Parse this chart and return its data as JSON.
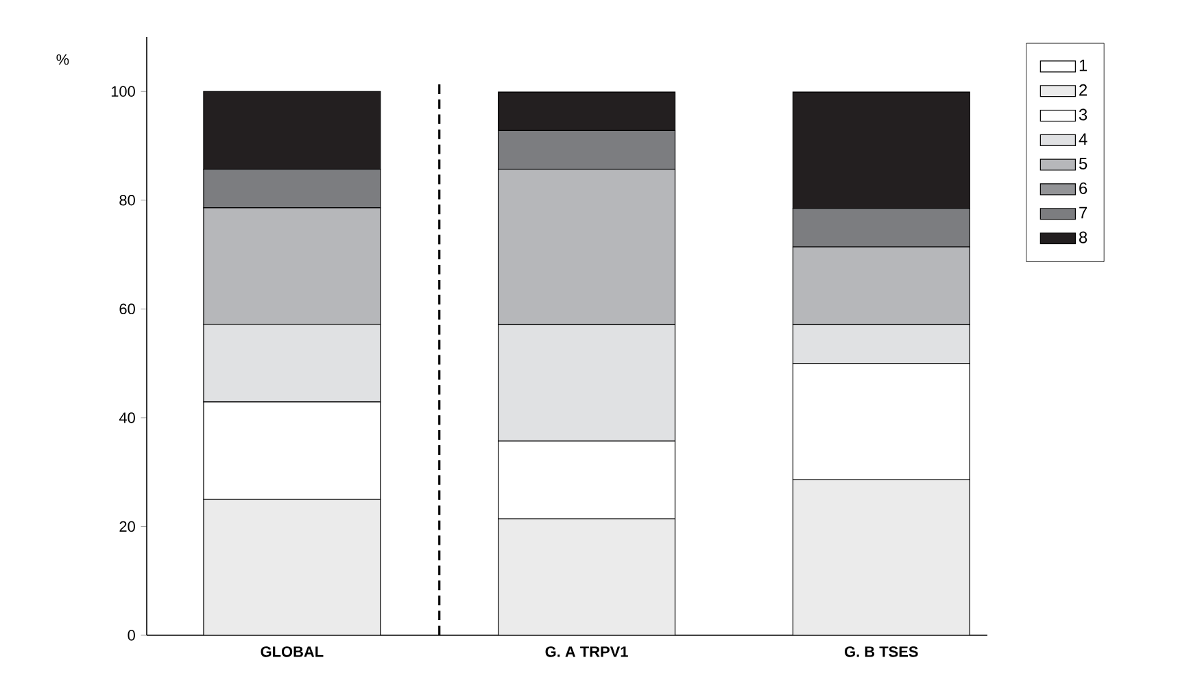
{
  "chart_data": {
    "type": "bar",
    "stacked": true,
    "ylabel": "%",
    "categories": [
      "GLOBAL",
      "G. A TRPV1",
      "G. B TSES"
    ],
    "series": [
      {
        "name": "1",
        "color": "#ffffff",
        "values": [
          0,
          0,
          0
        ]
      },
      {
        "name": "2",
        "color": "#ebebeb",
        "values": [
          25,
          21.4,
          28.6
        ]
      },
      {
        "name": "3",
        "color": "#ffffff",
        "values": [
          17.9,
          14.3,
          21.4
        ]
      },
      {
        "name": "4",
        "color": "#e0e1e3",
        "values": [
          14.3,
          21.4,
          7.1
        ]
      },
      {
        "name": "5",
        "color": "#b6b7ba",
        "values": [
          21.4,
          28.6,
          14.3
        ]
      },
      {
        "name": "6",
        "color": "#939497",
        "values": [
          0,
          0,
          0
        ]
      },
      {
        "name": "7",
        "color": "#7c7d80",
        "values": [
          7.1,
          7.1,
          7.1
        ]
      },
      {
        "name": "8",
        "color": "#231f20",
        "values": [
          14.3,
          7.1,
          21.4
        ]
      }
    ],
    "ylim": [
      0,
      110
    ],
    "yticks": [
      0,
      20,
      40,
      60,
      80,
      100
    ],
    "legend": "top right",
    "grid": false
  }
}
